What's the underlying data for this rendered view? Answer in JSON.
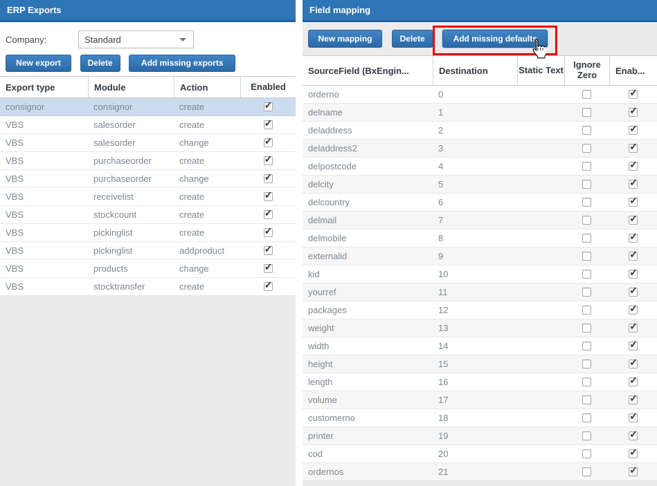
{
  "left_panel": {
    "title": "ERP Exports",
    "company_label": "Company:",
    "company_value": "Standard",
    "buttons": [
      "New export",
      "Delete",
      "Add missing exports"
    ],
    "table": {
      "columns": [
        "Export type",
        "Module",
        "Action",
        "Enabled"
      ],
      "rows": [
        {
          "export_type": "consignor",
          "module": "consignor",
          "action": "create",
          "enabled": true,
          "selected": true
        },
        {
          "export_type": "VBS",
          "module": "salesorder",
          "action": "create",
          "enabled": true
        },
        {
          "export_type": "VBS",
          "module": "salesorder",
          "action": "change",
          "enabled": true
        },
        {
          "export_type": "VBS",
          "module": "purchaseorder",
          "action": "create",
          "enabled": true
        },
        {
          "export_type": "VBS",
          "module": "purchaseorder",
          "action": "change",
          "enabled": true
        },
        {
          "export_type": "VBS",
          "module": "receivelist",
          "action": "create",
          "enabled": true
        },
        {
          "export_type": "VBS",
          "module": "stockcount",
          "action": "create",
          "enabled": true
        },
        {
          "export_type": "VBS",
          "module": "pickinglist",
          "action": "create",
          "enabled": true
        },
        {
          "export_type": "VBS",
          "module": "pickinglist",
          "action": "addproduct",
          "enabled": true
        },
        {
          "export_type": "VBS",
          "module": "products",
          "action": "change",
          "enabled": true
        },
        {
          "export_type": "VBS",
          "module": "stocktransfer",
          "action": "create",
          "enabled": true
        }
      ]
    }
  },
  "right_panel": {
    "title": "Field mapping",
    "buttons": [
      "New mapping",
      "Delete",
      "Add missing defaults"
    ],
    "table": {
      "columns": [
        "SourceField (BxEngin...",
        "Destination",
        "Static Text",
        "Ignore Zero",
        "Enab..."
      ],
      "rows": [
        {
          "source_field": "orderno",
          "destination": "0",
          "static_text": "",
          "ignore_zero": false,
          "enabled": true
        },
        {
          "source_field": "delname",
          "destination": "1",
          "static_text": "",
          "ignore_zero": false,
          "enabled": true
        },
        {
          "source_field": "deladdress",
          "destination": "2",
          "static_text": "",
          "ignore_zero": false,
          "enabled": true
        },
        {
          "source_field": "deladdress2",
          "destination": "3",
          "static_text": "",
          "ignore_zero": false,
          "enabled": true
        },
        {
          "source_field": "delpostcode",
          "destination": "4",
          "static_text": "",
          "ignore_zero": false,
          "enabled": true
        },
        {
          "source_field": "delcity",
          "destination": "5",
          "static_text": "",
          "ignore_zero": false,
          "enabled": true
        },
        {
          "source_field": "delcountry",
          "destination": "6",
          "static_text": "",
          "ignore_zero": false,
          "enabled": true
        },
        {
          "source_field": "delmail",
          "destination": "7",
          "static_text": "",
          "ignore_zero": false,
          "enabled": true
        },
        {
          "source_field": "delmobile",
          "destination": "8",
          "static_text": "",
          "ignore_zero": false,
          "enabled": true
        },
        {
          "source_field": "externalid",
          "destination": "9",
          "static_text": "",
          "ignore_zero": false,
          "enabled": true
        },
        {
          "source_field": "kid",
          "destination": "10",
          "static_text": "",
          "ignore_zero": false,
          "enabled": true
        },
        {
          "source_field": "yourref",
          "destination": "11",
          "static_text": "",
          "ignore_zero": false,
          "enabled": true
        },
        {
          "source_field": "packages",
          "destination": "12",
          "static_text": "",
          "ignore_zero": false,
          "enabled": true
        },
        {
          "source_field": "weight",
          "destination": "13",
          "static_text": "",
          "ignore_zero": false,
          "enabled": true
        },
        {
          "source_field": "width",
          "destination": "14",
          "static_text": "",
          "ignore_zero": false,
          "enabled": true
        },
        {
          "source_field": "height",
          "destination": "15",
          "static_text": "",
          "ignore_zero": false,
          "enabled": true
        },
        {
          "source_field": "length",
          "destination": "16",
          "static_text": "",
          "ignore_zero": false,
          "enabled": true
        },
        {
          "source_field": "volume",
          "destination": "17",
          "static_text": "",
          "ignore_zero": false,
          "enabled": true
        },
        {
          "source_field": "customerno",
          "destination": "18",
          "static_text": "",
          "ignore_zero": false,
          "enabled": true
        },
        {
          "source_field": "printer",
          "destination": "19",
          "static_text": "",
          "ignore_zero": false,
          "enabled": true
        },
        {
          "source_field": "cod",
          "destination": "20",
          "static_text": "",
          "ignore_zero": false,
          "enabled": true
        },
        {
          "source_field": "ordernos",
          "destination": "21",
          "static_text": "",
          "ignore_zero": false,
          "enabled": true
        }
      ]
    }
  },
  "annotation": {
    "highlight_target": "Add missing defaults",
    "highlight_color": "#e60000",
    "cursor": "hand-pointer"
  },
  "colors": {
    "header_blue": "#2e75b6",
    "header_blue_dark": "#1f5f9f",
    "button_gradient_top": "#4285c4",
    "button_gradient_bottom": "#2b6aa8",
    "selected_row": "#cbdcee",
    "toolbar_gray": "#ebebeb",
    "annotation_red": "#e60000"
  }
}
